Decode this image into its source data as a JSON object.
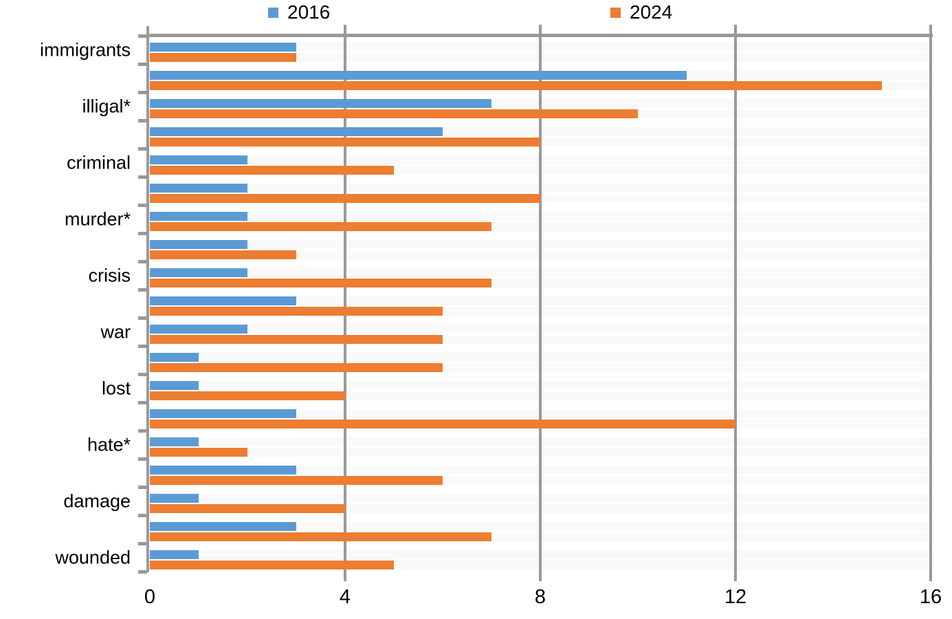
{
  "chart_data": {
    "type": "bar",
    "orientation": "horizontal",
    "title": "",
    "xlabel": "",
    "ylabel": "",
    "xlim": [
      0,
      16
    ],
    "xticks": [
      0,
      4,
      8,
      12,
      16
    ],
    "grid": true,
    "legend_position": "top",
    "categories": [
      "immigrants",
      "",
      "illigal*",
      "",
      "criminal",
      "",
      "murder*",
      "",
      "crisis",
      "",
      "war",
      "",
      "lost",
      "",
      "hate*",
      "",
      "damage",
      "",
      "wounded"
    ],
    "series": [
      {
        "name": "2016",
        "color": "#5B9BD5",
        "values": [
          3,
          11,
          7,
          6,
          2,
          2,
          2,
          2,
          2,
          3,
          2,
          1,
          1,
          3,
          1,
          3,
          1,
          3,
          1
        ]
      },
      {
        "name": "2024",
        "color": "#ED7D31",
        "values": [
          3,
          15,
          10,
          8,
          5,
          8,
          7,
          3,
          7,
          6,
          6,
          6,
          4,
          12,
          2,
          6,
          4,
          7,
          5
        ]
      }
    ],
    "axis_color": "#999999",
    "text_color": "#000000"
  }
}
